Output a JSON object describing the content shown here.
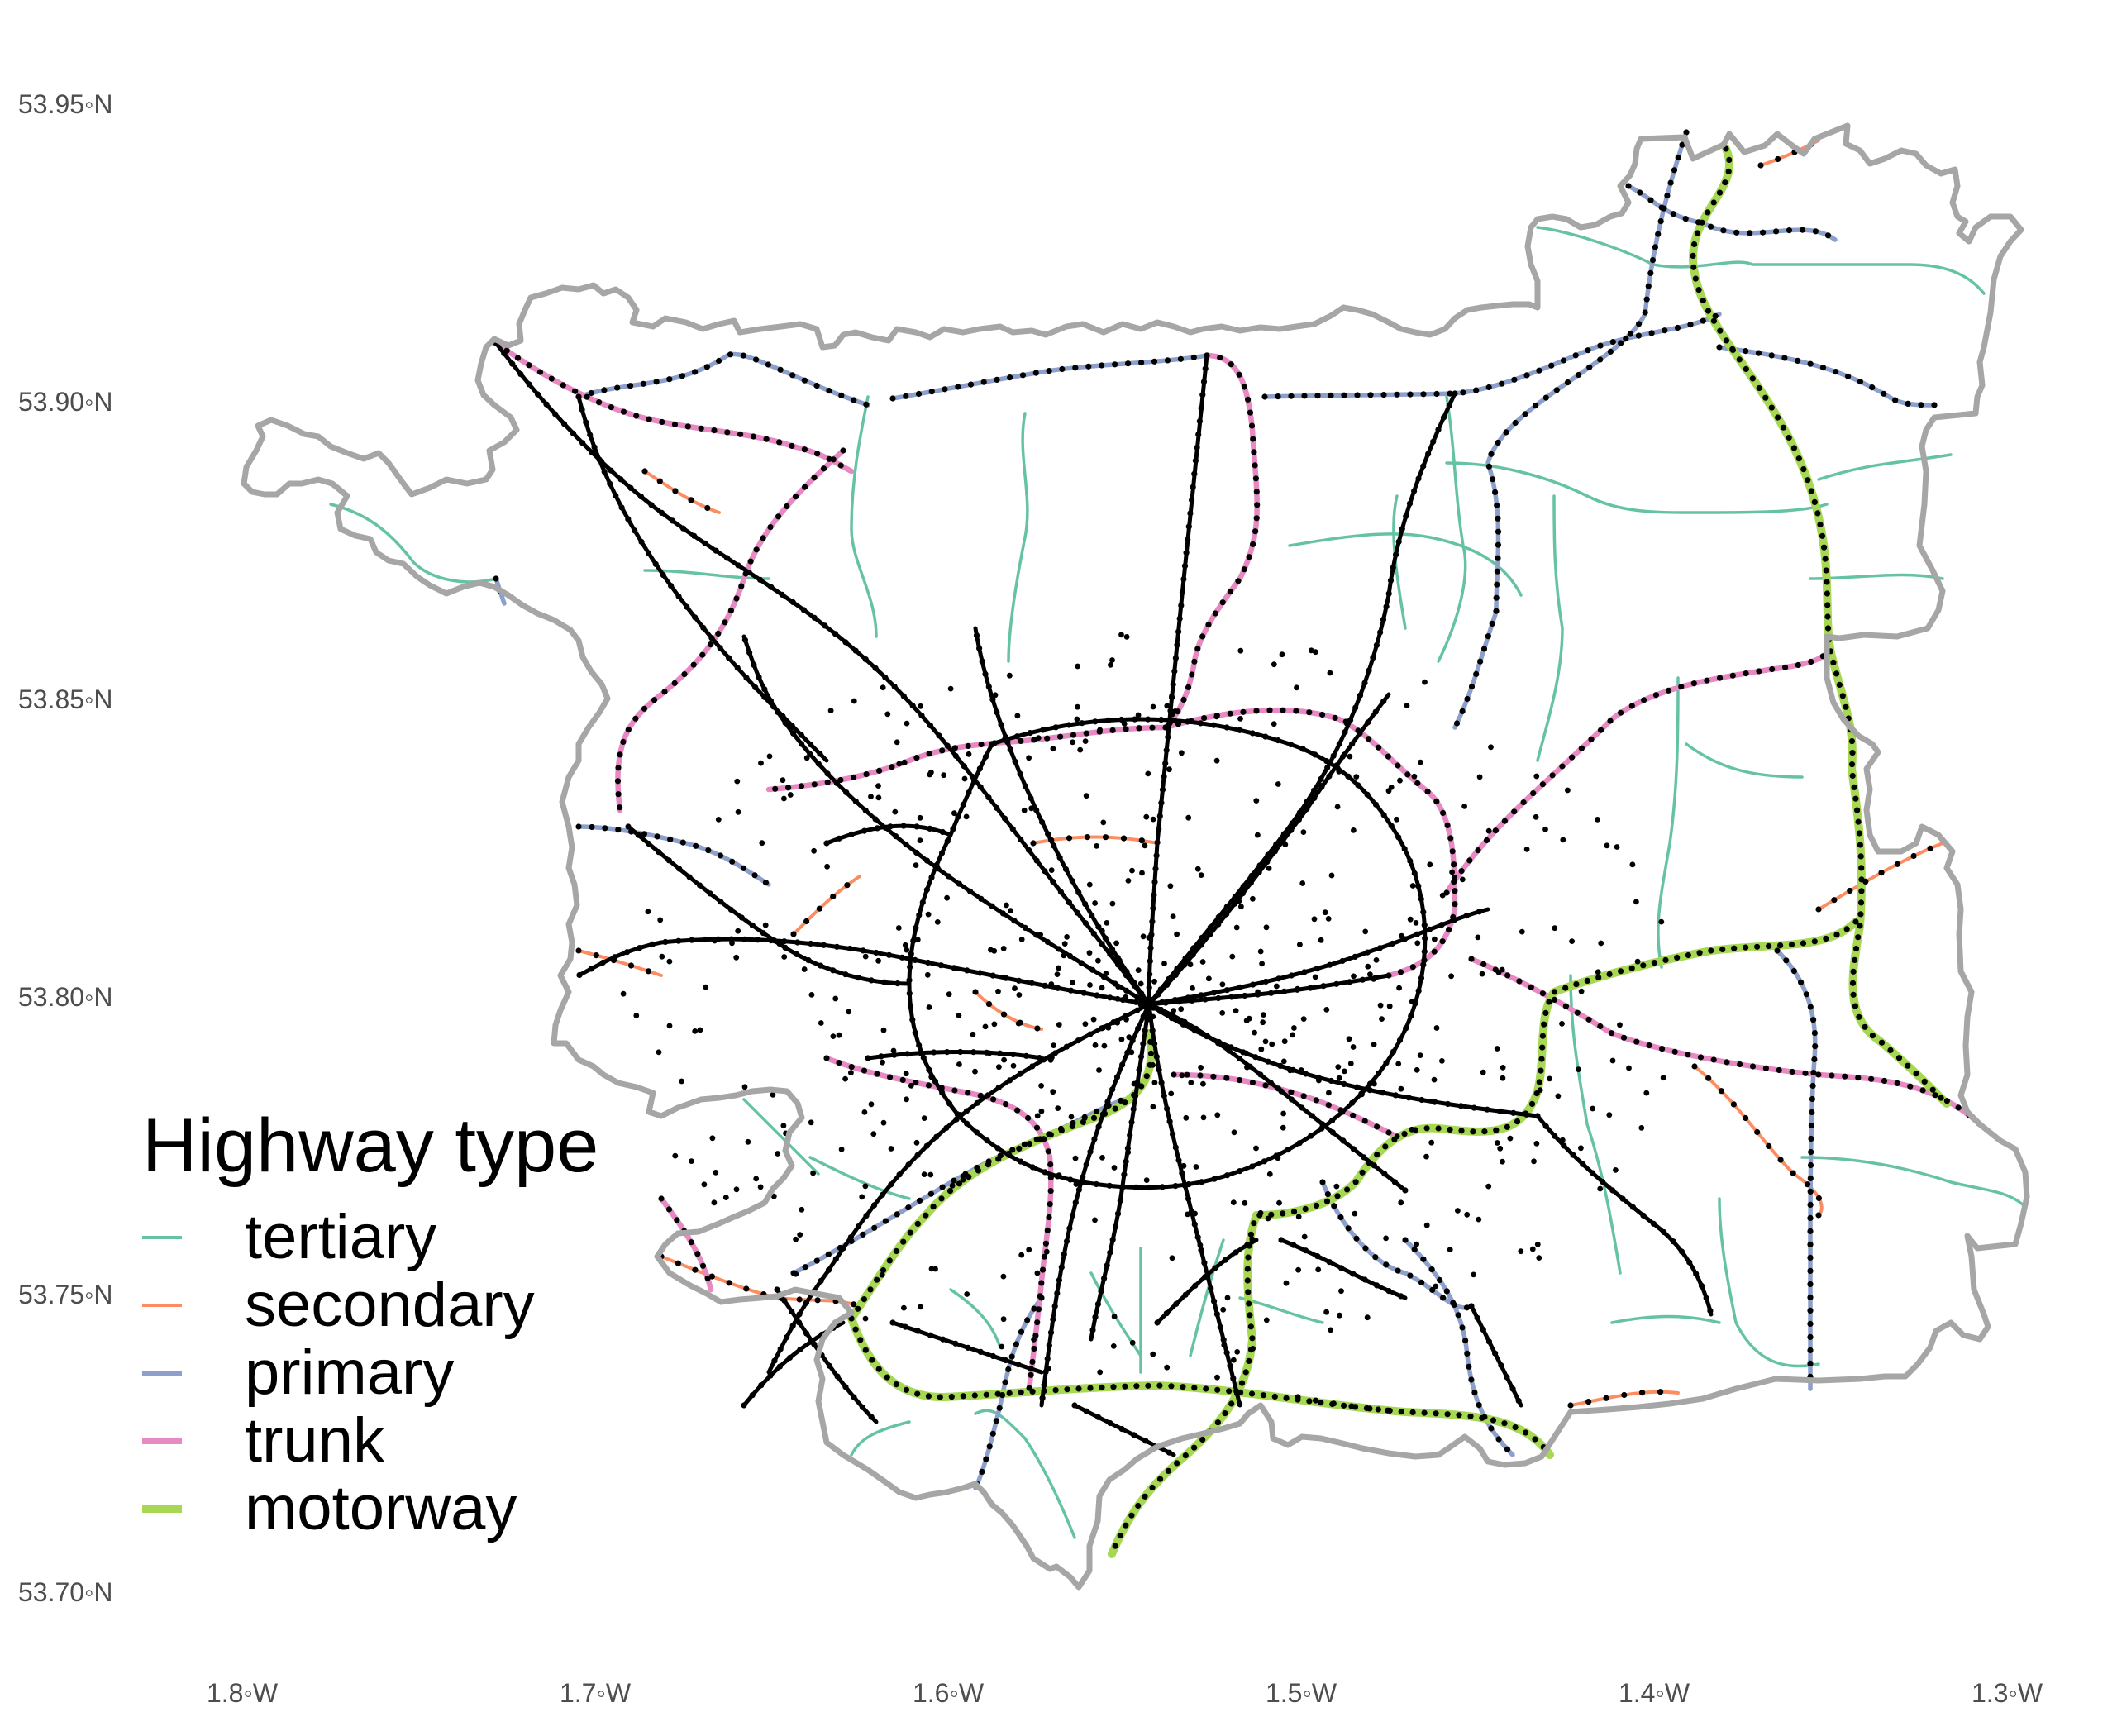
{
  "map": {
    "boundary_color": "#a6a6a6",
    "node_color": "#000000"
  },
  "axes": {
    "lat_labels": [
      {
        "text": "53.95◦N",
        "value": 53.95
      },
      {
        "text": "53.90◦N",
        "value": 53.9
      },
      {
        "text": "53.85◦N",
        "value": 53.85
      },
      {
        "text": "53.80◦N",
        "value": 53.8
      },
      {
        "text": "53.75◦N",
        "value": 53.75
      },
      {
        "text": "53.70◦N",
        "value": 53.7
      }
    ],
    "lon_labels": [
      {
        "text": "1.8◦W",
        "value": -1.8
      },
      {
        "text": "1.7◦W",
        "value": -1.7
      },
      {
        "text": "1.6◦W",
        "value": -1.6
      },
      {
        "text": "1.5◦W",
        "value": -1.5
      },
      {
        "text": "1.4◦W",
        "value": -1.4
      },
      {
        "text": "1.3◦W",
        "value": -1.3
      }
    ]
  },
  "legend": {
    "title": "Highway type",
    "items": [
      {
        "label": "tertiary",
        "color": "#66c2a5"
      },
      {
        "label": "secondary",
        "color": "#fc8d62"
      },
      {
        "label": "primary",
        "color": "#8da0cb"
      },
      {
        "label": "trunk",
        "color": "#e78ac3"
      },
      {
        "label": "motorway",
        "color": "#a6d854"
      }
    ]
  }
}
